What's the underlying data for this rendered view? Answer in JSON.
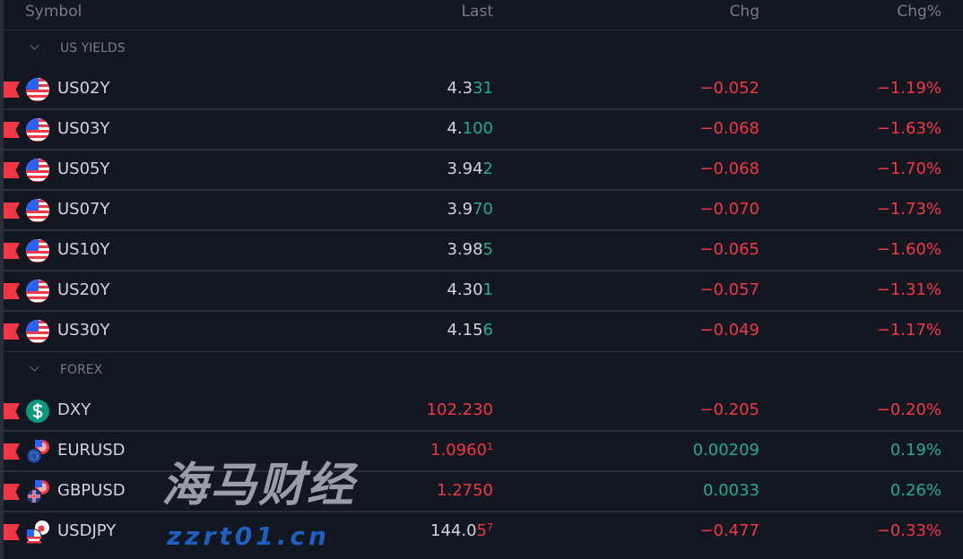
{
  "header": {
    "symbol": "Symbol",
    "last": "Last",
    "chg": "Chg",
    "chg_pct": "Chg%"
  },
  "colors": {
    "up": "#22ab94",
    "down": "#f23645",
    "text": "#d1d4dc",
    "muted": "#787b86"
  },
  "groups": [
    {
      "label": "US YIELDS",
      "rows": [
        {
          "symbol": "US02Y",
          "icon": "us-flag-icon",
          "last_main": "4.3",
          "last_hl": "31",
          "last_sup": "",
          "chg": "−0.052",
          "chg_pct": "−1.19%",
          "dir": "down",
          "last_hl_dir": "up"
        },
        {
          "symbol": "US03Y",
          "icon": "us-flag-icon",
          "last_main": "4.",
          "last_hl": "100",
          "last_sup": "",
          "chg": "−0.068",
          "chg_pct": "−1.63%",
          "dir": "down",
          "last_hl_dir": "up"
        },
        {
          "symbol": "US05Y",
          "icon": "us-flag-icon",
          "last_main": "3.94",
          "last_hl": "2",
          "last_sup": "",
          "chg": "−0.068",
          "chg_pct": "−1.70%",
          "dir": "down",
          "last_hl_dir": "up"
        },
        {
          "symbol": "US07Y",
          "icon": "us-flag-icon",
          "last_main": "3.9",
          "last_hl": "70",
          "last_sup": "",
          "chg": "−0.070",
          "chg_pct": "−1.73%",
          "dir": "down",
          "last_hl_dir": "up"
        },
        {
          "symbol": "US10Y",
          "icon": "us-flag-icon",
          "last_main": "3.98",
          "last_hl": "5",
          "last_sup": "",
          "chg": "−0.065",
          "chg_pct": "−1.60%",
          "dir": "down",
          "last_hl_dir": "up"
        },
        {
          "symbol": "US20Y",
          "icon": "us-flag-icon",
          "last_main": "4.30",
          "last_hl": "1",
          "last_sup": "",
          "chg": "−0.057",
          "chg_pct": "−1.31%",
          "dir": "down",
          "last_hl_dir": "up"
        },
        {
          "symbol": "US30Y",
          "icon": "us-flag-icon",
          "last_main": "4.15",
          "last_hl": "6",
          "last_sup": "",
          "chg": "−0.049",
          "chg_pct": "−1.17%",
          "dir": "down",
          "last_hl_dir": "up"
        }
      ]
    },
    {
      "label": "FOREX",
      "rows": [
        {
          "symbol": "DXY",
          "icon": "dollar-icon",
          "last_main": "",
          "last_hl": "102.230",
          "last_sup": "",
          "chg": "−0.205",
          "chg_pct": "−0.20%",
          "dir": "down",
          "last_hl_dir": "down"
        },
        {
          "symbol": "EURUSD",
          "icon": "eu-us-flags-icon",
          "last_main": "",
          "last_hl": "1.0960",
          "last_sup": "1",
          "chg": "0.00209",
          "chg_pct": "0.19%",
          "dir": "up",
          "last_hl_dir": "down"
        },
        {
          "symbol": "GBPUSD",
          "icon": "uk-us-flags-icon",
          "last_main": "",
          "last_hl": "1.2750",
          "last_sup": "",
          "chg": "0.0033",
          "chg_pct": "0.26%",
          "dir": "up",
          "last_hl_dir": "down"
        },
        {
          "symbol": "USDJPY",
          "icon": "us-jp-flags-icon",
          "last_main": "144.0",
          "last_hl": "5",
          "last_sup": "7",
          "chg": "−0.477",
          "chg_pct": "−0.33%",
          "dir": "down",
          "last_hl_dir": "down"
        }
      ]
    }
  ],
  "watermark": {
    "line1": "海马财经",
    "line2": "zzrt01.cn"
  }
}
